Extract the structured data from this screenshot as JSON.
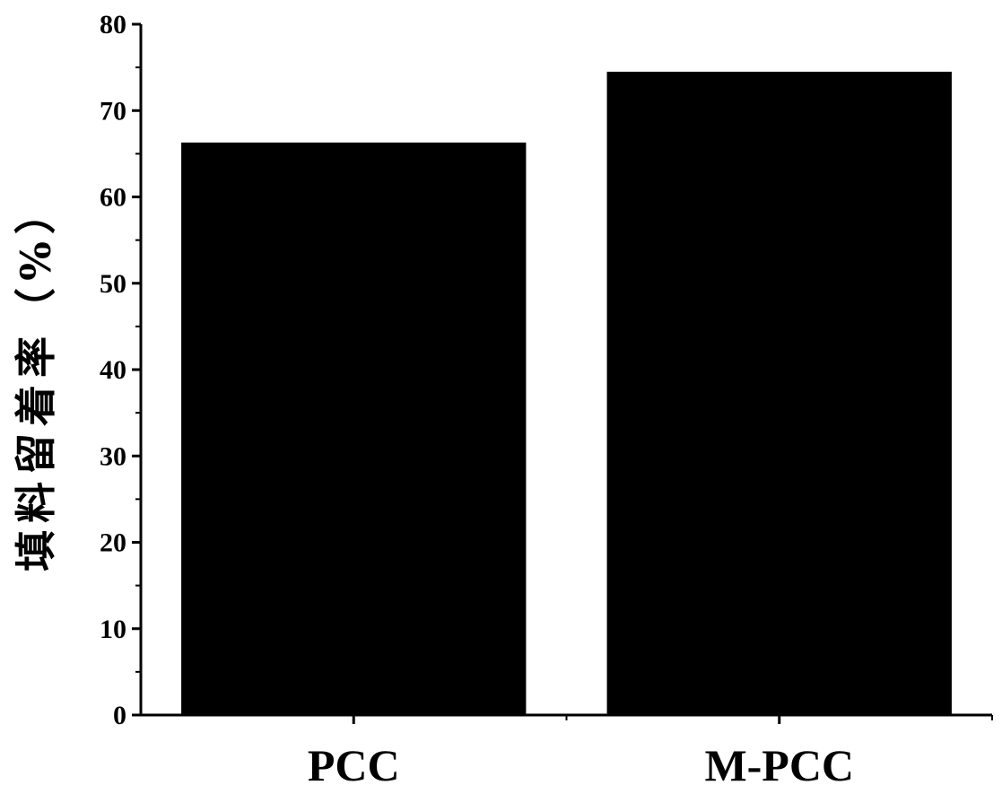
{
  "chart_data": {
    "type": "bar",
    "categories": [
      "PCC",
      "M-PCC"
    ],
    "values": [
      66.3,
      74.5
    ],
    "title": "",
    "xlabel": "",
    "ylabel": "填料留着率（%）",
    "ylim": [
      0,
      80
    ],
    "yticks": [
      0,
      10,
      20,
      30,
      40,
      50,
      60,
      70,
      80
    ],
    "grid": false,
    "legend": "none",
    "bar_color": "#000000"
  }
}
